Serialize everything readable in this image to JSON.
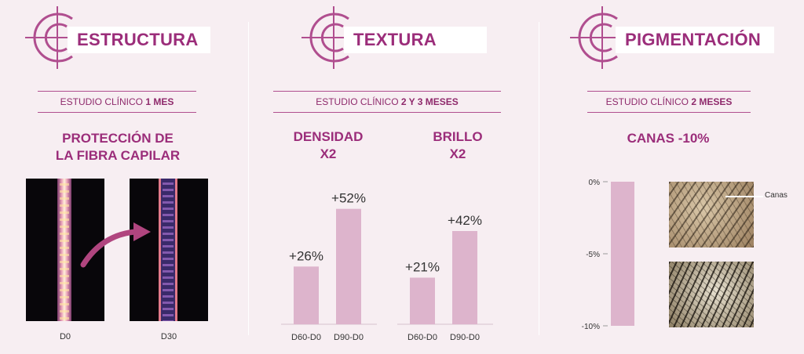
{
  "panels": {
    "estructura": {
      "title": "ESTRUCTURA",
      "study_prefix": "ESTUDIO CLÍNICO ",
      "study_bold": "1 MES",
      "headline_line1": "PROTECCIÓN DE",
      "headline_line2": "LA FIBRA CAPILAR",
      "images": [
        {
          "caption": "D0"
        },
        {
          "caption": "D30"
        }
      ]
    },
    "textura": {
      "title": "TEXTURA",
      "study_prefix": "ESTUDIO CLÍNICO ",
      "study_bold": "2 Y 3 MESES",
      "metric1_line1": "DENSIDAD",
      "metric1_line2": "X2",
      "metric2_line1": "BRILLO",
      "metric2_line2": "X2"
    },
    "pigmentacion": {
      "title": "PIGMENTACIÓN",
      "study_prefix": "ESTUDIO CLÍNICO ",
      "study_bold": "2 MESES",
      "headline": "CANAS -10%",
      "photo_label": "Canas"
    }
  },
  "colors": {
    "accent": "#9b2d7a",
    "bar": "#ddb4cc",
    "background": "#f7eef2",
    "rule": "#b04e8f"
  },
  "chart_data": [
    {
      "type": "bar",
      "categories": [
        "D60-D0",
        "D90-D0"
      ],
      "values": [
        26,
        52
      ],
      "labels": [
        "+26%",
        "+52%"
      ],
      "ylim": [
        0,
        60
      ]
    },
    {
      "type": "bar",
      "categories": [
        "D60-D0",
        "D90-D0"
      ],
      "values": [
        21,
        42
      ],
      "labels": [
        "+21%",
        "+42%"
      ],
      "ylim": [
        0,
        60
      ]
    },
    {
      "type": "bar",
      "categories": [
        ""
      ],
      "values": [
        -10
      ],
      "ylim": [
        -10,
        0
      ],
      "ytick_labels": [
        "0%",
        "-5%",
        "-10%"
      ],
      "yticks": [
        0,
        -5,
        -10
      ]
    }
  ]
}
